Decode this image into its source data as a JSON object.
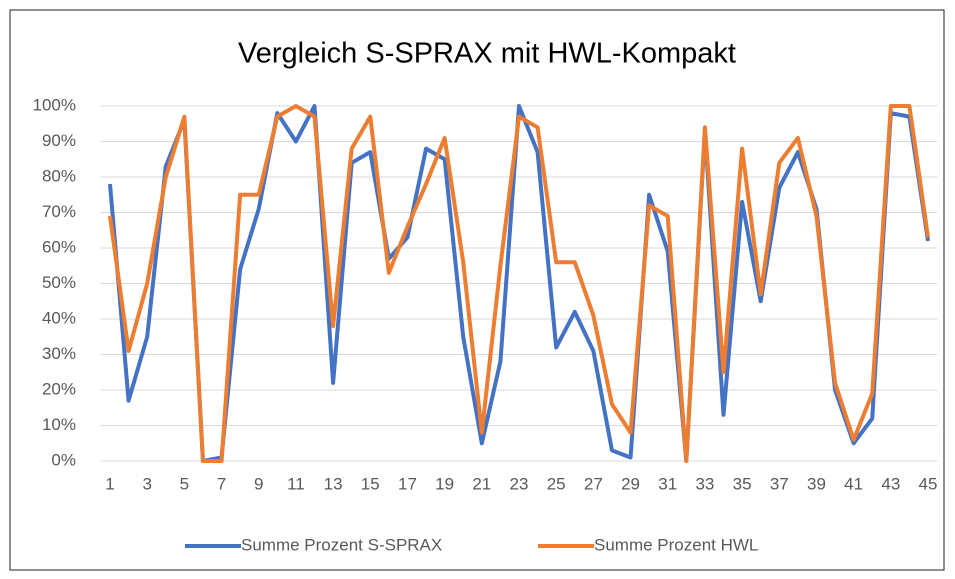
{
  "chart_data": {
    "type": "line",
    "title": "Vergleich S-SPRAX mit HWL-Kompakt",
    "categories": [
      "1",
      null,
      "3",
      null,
      "5",
      null,
      "7",
      null,
      "9",
      null,
      "11",
      null,
      "13",
      null,
      "15",
      null,
      "17",
      null,
      "19",
      null,
      "21",
      null,
      "23",
      null,
      "25",
      null,
      "27",
      null,
      "29",
      null,
      "31",
      null,
      "33",
      null,
      "35",
      null,
      "37",
      null,
      "39",
      null,
      "41",
      null,
      "43",
      null,
      "45"
    ],
    "series": [
      {
        "name": "Summe Prozent S-SPRAX",
        "color": "#4472c4",
        "values": [
          78,
          17,
          35,
          83,
          96,
          0,
          1,
          54,
          71,
          98,
          90,
          100,
          22,
          84,
          87,
          57,
          63,
          88,
          85,
          35,
          5,
          28,
          100,
          87,
          32,
          42,
          31,
          3,
          1,
          75,
          59,
          0,
          93,
          13,
          73,
          45,
          77,
          87,
          71,
          20,
          5,
          12,
          98,
          97,
          62
        ]
      },
      {
        "name": "Summe Prozent HWL",
        "color": "#ed7d31",
        "values": [
          69,
          31,
          50,
          80,
          97,
          0,
          0,
          75,
          75,
          97,
          100,
          97,
          38,
          88,
          97,
          53,
          66,
          78,
          91,
          56,
          8,
          55,
          97,
          94,
          56,
          56,
          41,
          16,
          8,
          72,
          69,
          0,
          94,
          25,
          88,
          47,
          84,
          91,
          69,
          22,
          6,
          19,
          100,
          100,
          63
        ]
      }
    ],
    "ylim": [
      0,
      100
    ],
    "yticks": [
      {
        "value": 0,
        "label": "0%"
      },
      {
        "value": 10,
        "label": "10%"
      },
      {
        "value": 20,
        "label": "20%"
      },
      {
        "value": 30,
        "label": "30%"
      },
      {
        "value": 40,
        "label": "40%"
      },
      {
        "value": 50,
        "label": "50%"
      },
      {
        "value": 60,
        "label": "60%"
      },
      {
        "value": 70,
        "label": "70%"
      },
      {
        "value": 80,
        "label": "80%"
      },
      {
        "value": 90,
        "label": "90%"
      },
      {
        "value": 100,
        "label": "100%"
      }
    ],
    "grid": true,
    "legend": "bottom"
  }
}
